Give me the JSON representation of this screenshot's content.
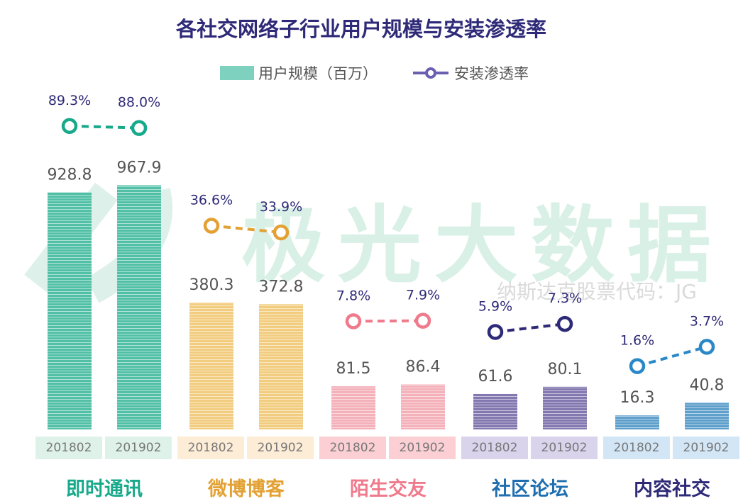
{
  "chart_data": {
    "type": "bar",
    "title": "各社交网络子行业用户规模与安装渗透率",
    "legend": {
      "position": "top",
      "entries": [
        "用户规模（百万）",
        "安装渗透率"
      ]
    },
    "periods": [
      "201802",
      "201902"
    ],
    "categories": [
      "即时通讯",
      "微博博客",
      "陌生交友",
      "社区论坛",
      "内容社交"
    ],
    "series": [
      {
        "name": "用户规模（百万）",
        "type": "bar",
        "values": [
          [
            928.8,
            967.9
          ],
          [
            380.3,
            372.8
          ],
          [
            81.5,
            86.4
          ],
          [
            61.6,
            80.1
          ],
          [
            16.3,
            40.8
          ]
        ],
        "labels": [
          [
            "928.8",
            "967.9"
          ],
          [
            "380.3",
            "372.8"
          ],
          [
            "81.5",
            "86.4"
          ],
          [
            "61.6",
            "80.1"
          ],
          [
            "16.3",
            "40.8"
          ]
        ]
      },
      {
        "name": "安装渗透率",
        "type": "line",
        "unit": "%",
        "values": [
          [
            89.3,
            88.0
          ],
          [
            36.6,
            33.9
          ],
          [
            7.8,
            7.9
          ],
          [
            5.9,
            7.3
          ],
          [
            1.6,
            3.7
          ]
        ],
        "labels": [
          [
            "89.3%",
            "88.0%"
          ],
          [
            "36.6%",
            "33.9%"
          ],
          [
            "7.8%",
            "7.9%"
          ],
          [
            "5.9%",
            "7.3%"
          ],
          [
            "1.6%",
            "3.7%"
          ]
        ]
      }
    ],
    "colors": {
      "bars": [
        "#52c0a6",
        "#f2cd80",
        "#f4b1ba",
        "#8478b0",
        "#5e9fcb"
      ],
      "lines": [
        "#17a98a",
        "#e3a133",
        "#ef7a8b",
        "#2e2a78",
        "#2a88c8"
      ],
      "tick_bg": [
        "#dff2ea",
        "#fdecd6",
        "#fbcfd3",
        "#d9d3ec",
        "#d3e6f6"
      ],
      "category_text": [
        "#17a98a",
        "#e3a133",
        "#ef7a8b",
        "#1f6fb0",
        "#2e2a78"
      ]
    },
    "watermark": [
      "极光大数据",
      "纳斯达克股票代码：JG"
    ]
  }
}
